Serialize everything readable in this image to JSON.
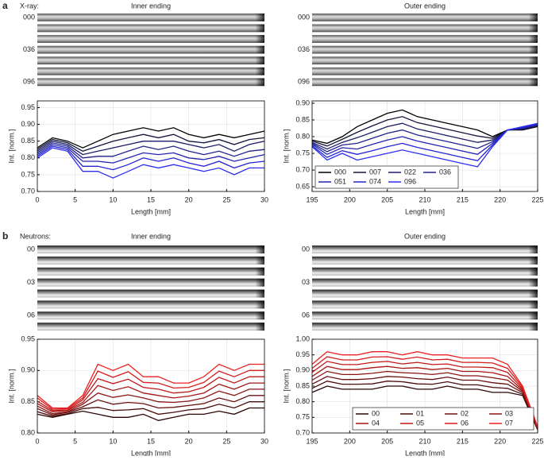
{
  "panels": [
    {
      "label": "a",
      "probe": "X-ray:",
      "strips": [
        {
          "title": "Inner ending",
          "row_labels": [
            "000",
            "036",
            "096"
          ]
        },
        {
          "title": "Outer ending",
          "row_labels": [
            "000",
            "036",
            "096"
          ]
        }
      ]
    },
    {
      "label": "b",
      "probe": "Neutrons:",
      "strips": [
        {
          "title": "Inner ending",
          "row_labels": [
            "00",
            "03",
            "06"
          ]
        },
        {
          "title": "Outer ending",
          "row_labels": [
            "00",
            "03",
            "06"
          ]
        }
      ]
    }
  ],
  "chart_data": [
    {
      "type": "line",
      "xlabel": "Length [mm]",
      "ylabel": "Int. [norm.]",
      "grid": true,
      "x": [
        0,
        2,
        4,
        6,
        8,
        10,
        12,
        14,
        16,
        18,
        20,
        22,
        24,
        26,
        28,
        30
      ],
      "xlim": [
        0,
        30
      ],
      "xticks": [
        0,
        5,
        10,
        15,
        20,
        25,
        30
      ],
      "ylim": [
        0.7,
        0.97
      ],
      "yticks": [
        {
          "value": 0.7,
          "label": "0.70"
        },
        0.75,
        {
          "value": 0.8,
          "label": "0.80"
        },
        0.85,
        {
          "value": 0.9,
          "label": "0.90"
        },
        0.95
      ],
      "series": [
        {
          "name": "000",
          "color": "#000000",
          "values": [
            0.83,
            0.86,
            0.85,
            0.83,
            0.85,
            0.87,
            0.88,
            0.89,
            0.88,
            0.89,
            0.87,
            0.86,
            0.87,
            0.86,
            0.87,
            0.88
          ]
        },
        {
          "name": "007",
          "color": "#14143c",
          "values": [
            0.825,
            0.855,
            0.845,
            0.82,
            0.835,
            0.85,
            0.86,
            0.87,
            0.86,
            0.87,
            0.85,
            0.845,
            0.855,
            0.84,
            0.855,
            0.86
          ]
        },
        {
          "name": "022",
          "color": "#1c1c66",
          "values": [
            0.82,
            0.85,
            0.84,
            0.81,
            0.82,
            0.83,
            0.84,
            0.85,
            0.85,
            0.85,
            0.84,
            0.83,
            0.84,
            0.82,
            0.84,
            0.85
          ]
        },
        {
          "name": "036",
          "color": "#22228e",
          "values": [
            0.815,
            0.845,
            0.835,
            0.8,
            0.805,
            0.805,
            0.82,
            0.835,
            0.825,
            0.835,
            0.82,
            0.81,
            0.82,
            0.805,
            0.82,
            0.825
          ]
        },
        {
          "name": "051",
          "color": "#2323b4",
          "values": [
            0.81,
            0.84,
            0.83,
            0.79,
            0.79,
            0.785,
            0.8,
            0.815,
            0.81,
            0.815,
            0.8,
            0.795,
            0.805,
            0.79,
            0.8,
            0.81
          ]
        },
        {
          "name": "074",
          "color": "#2424d4",
          "values": [
            0.805,
            0.835,
            0.825,
            0.775,
            0.775,
            0.765,
            0.78,
            0.8,
            0.79,
            0.8,
            0.785,
            0.775,
            0.79,
            0.77,
            0.785,
            0.79
          ]
        },
        {
          "name": "096",
          "color": "#2e2ef2",
          "values": [
            0.8,
            0.83,
            0.82,
            0.76,
            0.76,
            0.74,
            0.76,
            0.78,
            0.77,
            0.78,
            0.77,
            0.76,
            0.77,
            0.75,
            0.77,
            0.77
          ]
        }
      ]
    },
    {
      "type": "line",
      "xlabel": "Length [mm]",
      "ylabel": "Int. [norm.]",
      "grid": true,
      "legend": "lower left",
      "x": [
        195,
        197,
        199,
        201,
        203,
        205,
        207,
        209,
        211,
        213,
        215,
        217,
        219,
        221,
        223,
        225
      ],
      "xlim": [
        195,
        225
      ],
      "xticks": [
        195,
        200,
        205,
        210,
        215,
        220,
        225
      ],
      "ylim": [
        0.636,
        0.907
      ],
      "yticks": [
        0.65,
        {
          "value": 0.7,
          "label": "0.70"
        },
        0.75,
        {
          "value": 0.8,
          "label": "0.80"
        },
        0.85,
        {
          "value": 0.9,
          "label": "0.90"
        }
      ],
      "series": [
        {
          "name": "000",
          "color": "#000000",
          "values": [
            0.79,
            0.78,
            0.8,
            0.83,
            0.85,
            0.87,
            0.88,
            0.86,
            0.85,
            0.84,
            0.83,
            0.82,
            0.8,
            0.82,
            0.82,
            0.83
          ]
        },
        {
          "name": "007",
          "color": "#14143c",
          "values": [
            0.787,
            0.772,
            0.792,
            0.813,
            0.832,
            0.85,
            0.86,
            0.842,
            0.832,
            0.822,
            0.812,
            0.802,
            0.795,
            0.82,
            0.822,
            0.832
          ]
        },
        {
          "name": "022",
          "color": "#1c1c66",
          "values": [
            0.783,
            0.763,
            0.783,
            0.797,
            0.813,
            0.83,
            0.84,
            0.823,
            0.813,
            0.803,
            0.793,
            0.783,
            0.79,
            0.82,
            0.823,
            0.833
          ]
        },
        {
          "name": "036",
          "color": "#22228e",
          "values": [
            0.78,
            0.755,
            0.775,
            0.78,
            0.795,
            0.81,
            0.82,
            0.805,
            0.795,
            0.785,
            0.775,
            0.765,
            0.785,
            0.82,
            0.825,
            0.835
          ]
        },
        {
          "name": "051",
          "color": "#2323b4",
          "values": [
            0.777,
            0.747,
            0.767,
            0.763,
            0.777,
            0.79,
            0.8,
            0.787,
            0.777,
            0.767,
            0.757,
            0.747,
            0.78,
            0.82,
            0.827,
            0.837
          ]
        },
        {
          "name": "074",
          "color": "#2424d4",
          "values": [
            0.773,
            0.738,
            0.758,
            0.747,
            0.758,
            0.77,
            0.78,
            0.768,
            0.758,
            0.748,
            0.738,
            0.728,
            0.775,
            0.82,
            0.828,
            0.838
          ]
        },
        {
          "name": "096",
          "color": "#2e2ef2",
          "values": [
            0.77,
            0.73,
            0.75,
            0.73,
            0.74,
            0.75,
            0.76,
            0.75,
            0.74,
            0.73,
            0.72,
            0.71,
            0.77,
            0.82,
            0.83,
            0.84
          ]
        }
      ]
    },
    {
      "type": "line",
      "xlabel": "Length [mm]",
      "ylabel": "Int. [norm.]",
      "grid": true,
      "x": [
        0,
        2,
        4,
        6,
        8,
        10,
        12,
        14,
        16,
        18,
        20,
        22,
        24,
        26,
        28,
        30
      ],
      "xlim": [
        0,
        30
      ],
      "xticks": [
        0,
        5,
        10,
        15,
        20,
        25,
        30
      ],
      "ylim": [
        0.8,
        0.95
      ],
      "yticks": [
        {
          "value": 0.8,
          "label": "0.80"
        },
        0.85,
        {
          "value": 0.9,
          "label": "0.90"
        },
        0.95
      ],
      "series": [
        {
          "name": "00",
          "color": "#2a0505",
          "values": [
            0.83,
            0.825,
            0.83,
            0.835,
            0.83,
            0.825,
            0.825,
            0.83,
            0.82,
            0.825,
            0.83,
            0.83,
            0.835,
            0.83,
            0.84,
            0.84
          ]
        },
        {
          "name": "01",
          "color": "#4a0c0c",
          "values": [
            0.834,
            0.827,
            0.831,
            0.839,
            0.841,
            0.836,
            0.837,
            0.839,
            0.83,
            0.833,
            0.837,
            0.839,
            0.846,
            0.84,
            0.85,
            0.85
          ]
        },
        {
          "name": "02",
          "color": "#6a1010",
          "values": [
            0.839,
            0.829,
            0.833,
            0.842,
            0.853,
            0.846,
            0.849,
            0.847,
            0.84,
            0.841,
            0.844,
            0.847,
            0.856,
            0.85,
            0.86,
            0.86
          ]
        },
        {
          "name": "03",
          "color": "#8a1414",
          "values": [
            0.843,
            0.831,
            0.834,
            0.846,
            0.864,
            0.857,
            0.861,
            0.856,
            0.85,
            0.849,
            0.851,
            0.856,
            0.867,
            0.86,
            0.87,
            0.87
          ]
        },
        {
          "name": "04",
          "color": "#a81616",
          "values": [
            0.847,
            0.834,
            0.836,
            0.849,
            0.876,
            0.868,
            0.874,
            0.864,
            0.86,
            0.856,
            0.859,
            0.864,
            0.878,
            0.87,
            0.88,
            0.88
          ]
        },
        {
          "name": "05",
          "color": "#c21818",
          "values": [
            0.851,
            0.836,
            0.837,
            0.853,
            0.887,
            0.879,
            0.886,
            0.873,
            0.87,
            0.864,
            0.866,
            0.873,
            0.889,
            0.88,
            0.89,
            0.89
          ]
        },
        {
          "name": "06",
          "color": "#d81b1b",
          "values": [
            0.856,
            0.838,
            0.839,
            0.856,
            0.899,
            0.889,
            0.898,
            0.881,
            0.88,
            0.872,
            0.873,
            0.881,
            0.899,
            0.89,
            0.9,
            0.9
          ]
        },
        {
          "name": "07",
          "color": "#ee2020",
          "values": [
            0.86,
            0.84,
            0.84,
            0.86,
            0.91,
            0.9,
            0.91,
            0.89,
            0.89,
            0.88,
            0.88,
            0.89,
            0.91,
            0.9,
            0.91,
            0.91
          ]
        }
      ]
    },
    {
      "type": "line",
      "xlabel": "Length [mm]",
      "ylabel": "Int. [norm.]",
      "grid": true,
      "legend": "lower right",
      "x": [
        195,
        197,
        199,
        201,
        203,
        205,
        207,
        209,
        211,
        213,
        215,
        217,
        219,
        221,
        223,
        225
      ],
      "xlim": [
        195,
        225
      ],
      "xticks": [
        195,
        200,
        205,
        210,
        215,
        220,
        225
      ],
      "ylim": [
        0.7,
        1.0
      ],
      "yticks": [
        {
          "value": 0.7,
          "label": "0.70"
        },
        0.75,
        {
          "value": 0.8,
          "label": "0.80"
        },
        0.85,
        {
          "value": 0.9,
          "label": "0.90"
        },
        0.95,
        {
          "value": 1.0,
          "label": "1.00"
        }
      ],
      "series": [
        {
          "name": "00",
          "color": "#2a0505",
          "values": [
            0.83,
            0.85,
            0.84,
            0.84,
            0.84,
            0.85,
            0.85,
            0.84,
            0.84,
            0.85,
            0.84,
            0.84,
            0.83,
            0.83,
            0.82,
            0.71
          ]
        },
        {
          "name": "01",
          "color": "#4a0c0c",
          "values": [
            0.843,
            0.866,
            0.856,
            0.856,
            0.857,
            0.866,
            0.864,
            0.857,
            0.856,
            0.864,
            0.854,
            0.854,
            0.846,
            0.843,
            0.824,
            0.711
          ]
        },
        {
          "name": "02",
          "color": "#6a1010",
          "values": [
            0.856,
            0.881,
            0.871,
            0.871,
            0.874,
            0.881,
            0.879,
            0.874,
            0.871,
            0.879,
            0.869,
            0.869,
            0.861,
            0.856,
            0.829,
            0.713
          ]
        },
        {
          "name": "03",
          "color": "#8a1414",
          "values": [
            0.869,
            0.897,
            0.887,
            0.887,
            0.891,
            0.897,
            0.893,
            0.891,
            0.887,
            0.893,
            0.883,
            0.883,
            0.877,
            0.869,
            0.833,
            0.714
          ]
        },
        {
          "name": "04",
          "color": "#a81616",
          "values": [
            0.881,
            0.913,
            0.903,
            0.903,
            0.909,
            0.913,
            0.907,
            0.909,
            0.903,
            0.907,
            0.897,
            0.897,
            0.893,
            0.881,
            0.837,
            0.716
          ]
        },
        {
          "name": "05",
          "color": "#c21818",
          "values": [
            0.894,
            0.929,
            0.919,
            0.919,
            0.926,
            0.929,
            0.921,
            0.926,
            0.919,
            0.921,
            0.911,
            0.911,
            0.909,
            0.894,
            0.841,
            0.717
          ]
        },
        {
          "name": "06",
          "color": "#d81b1b",
          "values": [
            0.907,
            0.944,
            0.934,
            0.934,
            0.943,
            0.944,
            0.936,
            0.943,
            0.934,
            0.936,
            0.926,
            0.926,
            0.924,
            0.907,
            0.846,
            0.719
          ]
        },
        {
          "name": "07",
          "color": "#ee2020",
          "values": [
            0.92,
            0.96,
            0.95,
            0.95,
            0.96,
            0.96,
            0.95,
            0.96,
            0.95,
            0.95,
            0.94,
            0.94,
            0.94,
            0.92,
            0.85,
            0.72
          ]
        }
      ]
    }
  ]
}
